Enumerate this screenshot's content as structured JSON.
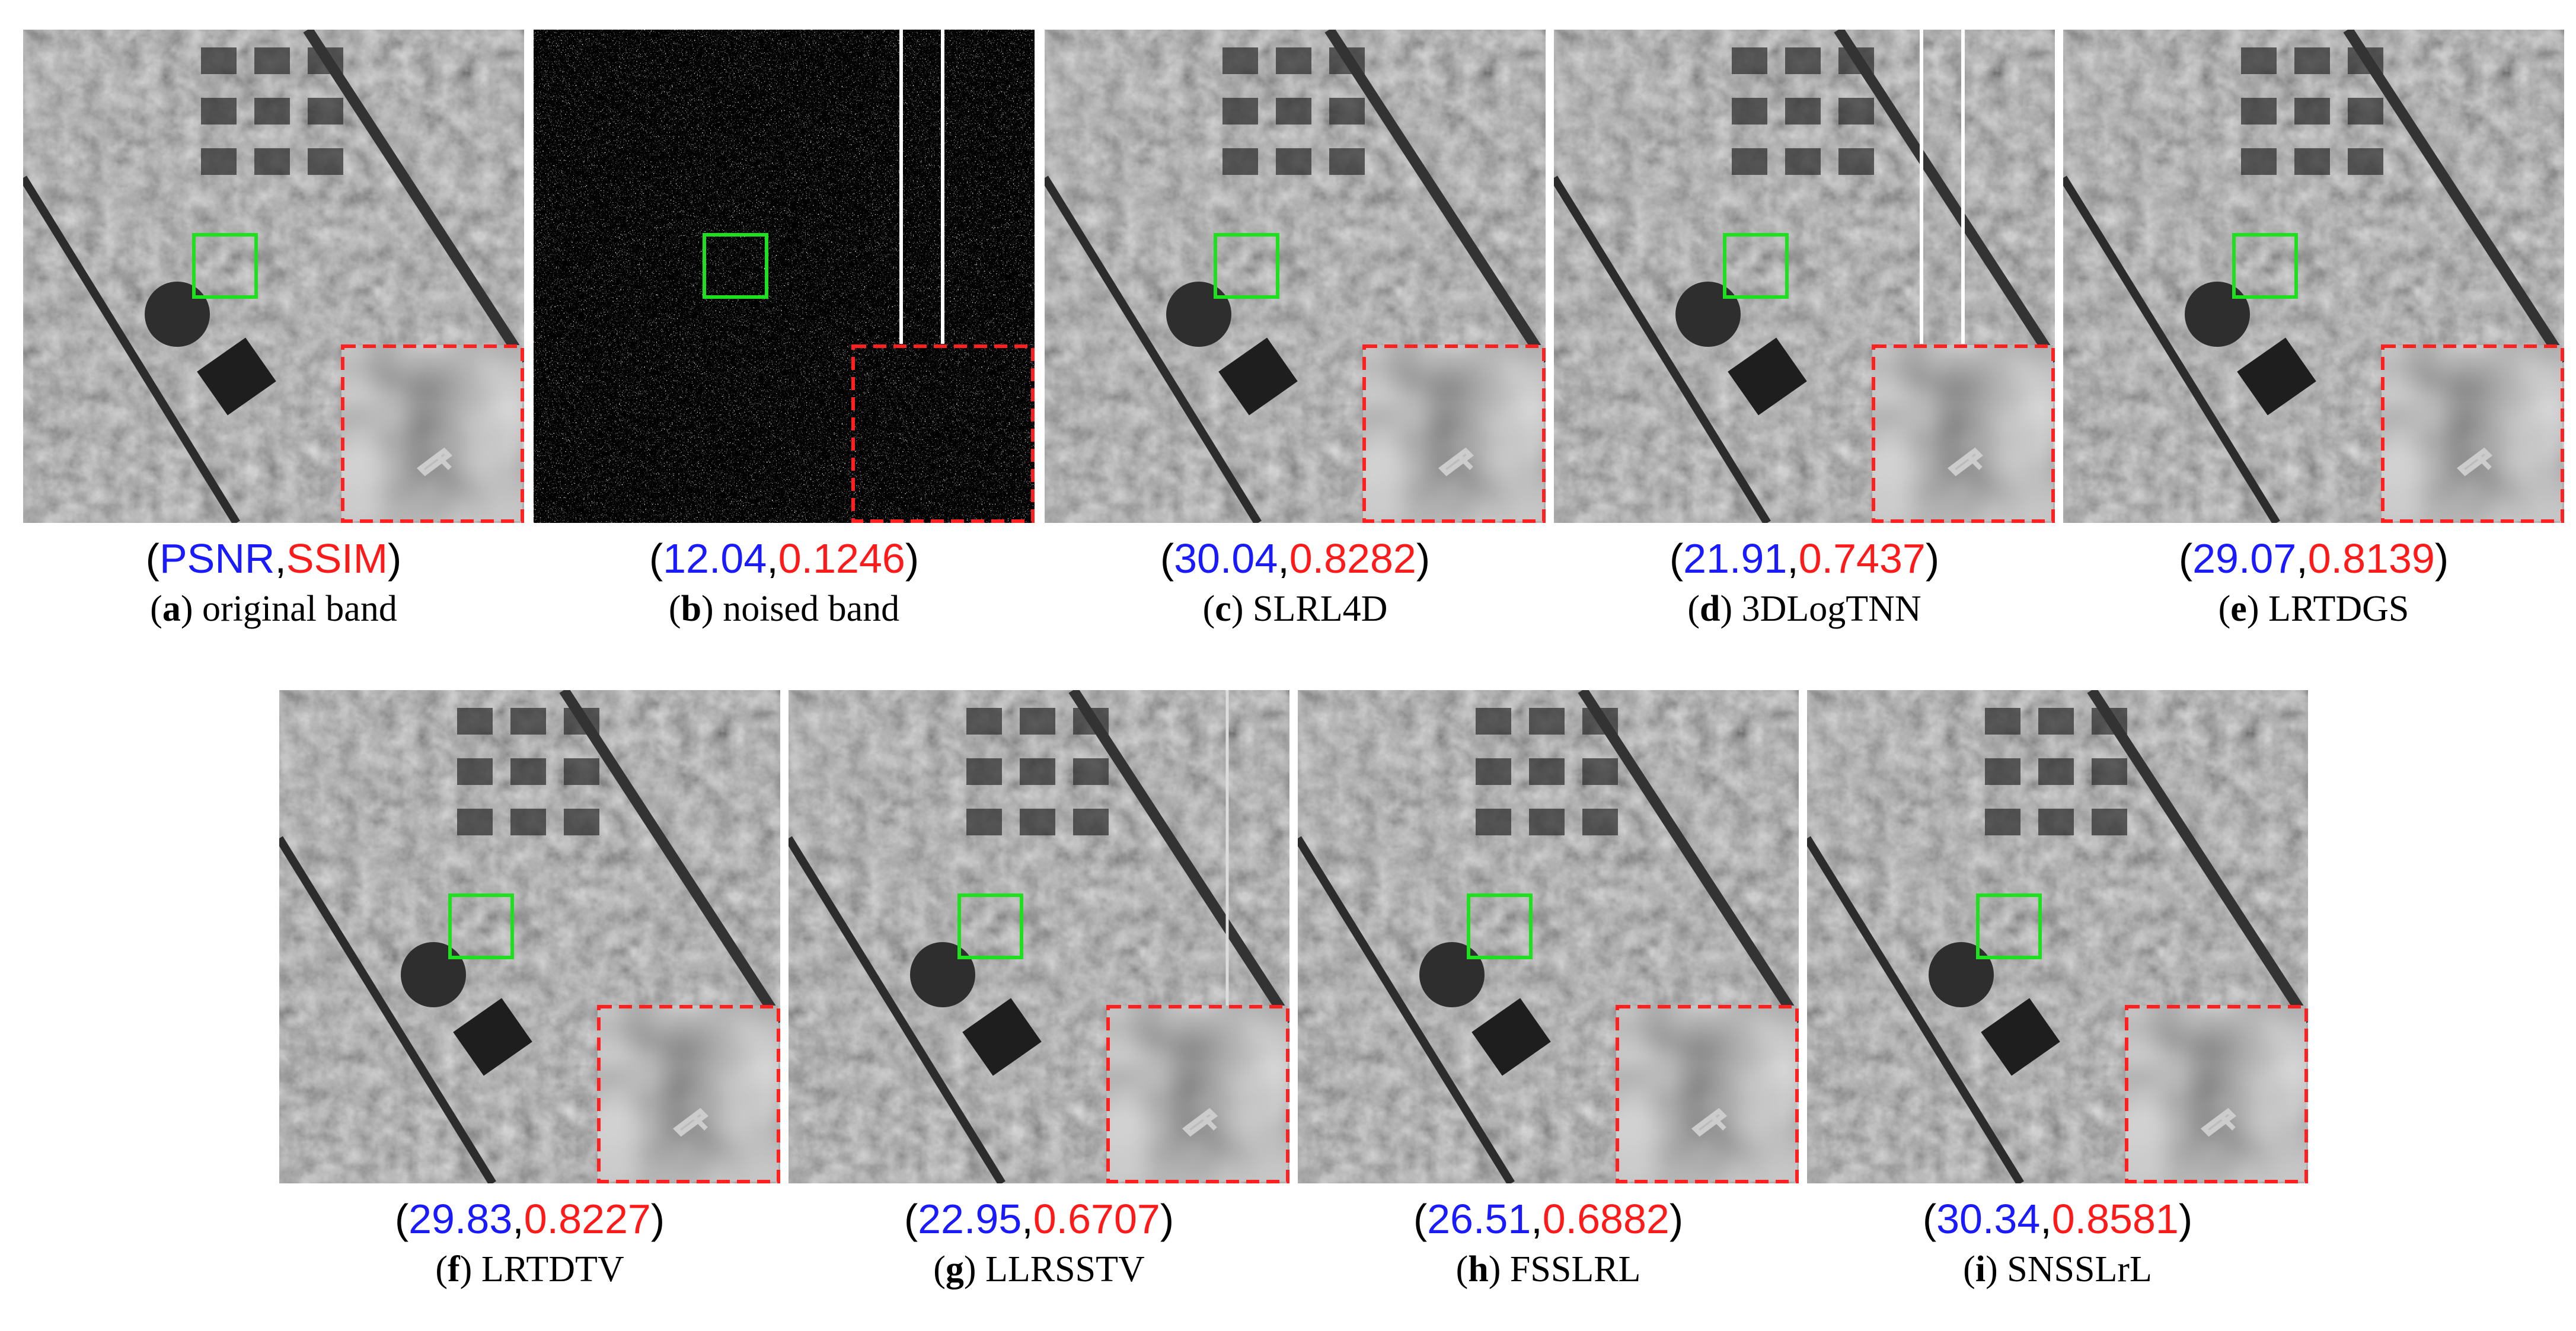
{
  "legend": {
    "psnr": "PSNR",
    "ssim": "SSIM"
  },
  "punctuation": {
    "open": "(",
    "separator": ",",
    "close": ")"
  },
  "panels": [
    {
      "label": "a",
      "method": "original band"
    },
    {
      "label": "b",
      "method": "noised band",
      "psnr": 12.04,
      "ssim": 0.1246
    },
    {
      "label": "c",
      "method": "SLRL4D",
      "psnr": 30.04,
      "ssim": 0.8282
    },
    {
      "label": "d",
      "method": "3DLogTNN",
      "psnr": 21.91,
      "ssim": 0.7437
    },
    {
      "label": "e",
      "method": "LRTDGS",
      "psnr": 29.07,
      "ssim": 0.8139
    },
    {
      "label": "f",
      "method": "LRTDTV",
      "psnr": 29.83,
      "ssim": 0.8227
    },
    {
      "label": "g",
      "method": "LLRSSTV",
      "psnr": 22.95,
      "ssim": 0.6707
    },
    {
      "label": "h",
      "method": "FSSLRL",
      "psnr": 26.51,
      "ssim": 0.6882
    },
    {
      "label": "i",
      "method": "SNSSLrL",
      "psnr": 30.34,
      "ssim": 0.8581
    }
  ]
}
